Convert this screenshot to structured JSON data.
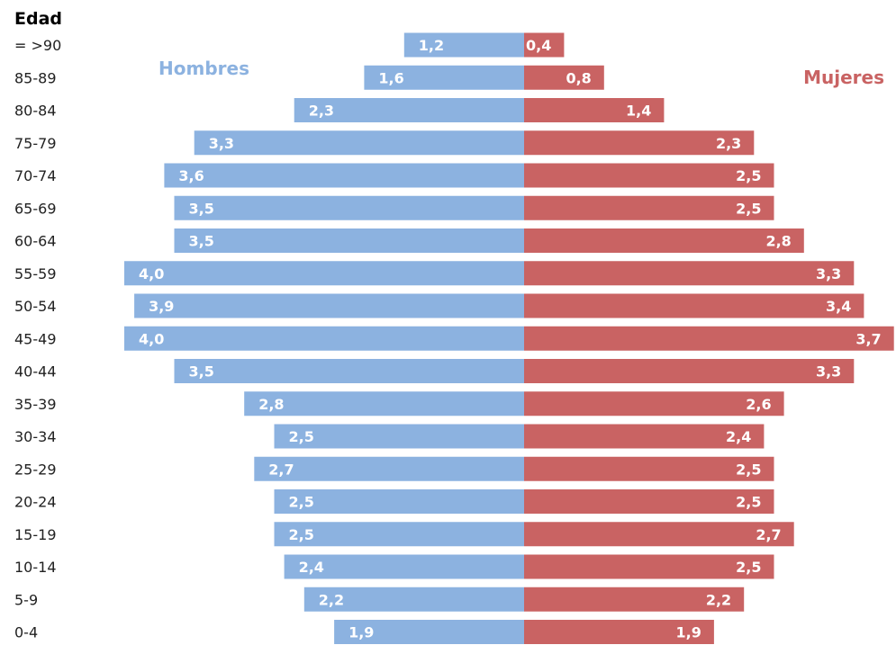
{
  "chart_data": {
    "type": "bar",
    "orientation": "horizontal-diverging",
    "ylabel": "Edad",
    "categories": [
      "= >90",
      "85-89",
      "80-84",
      "75-79",
      "70-74",
      "65-69",
      "60-64",
      "55-59",
      "50-54",
      "45-49",
      "40-44",
      "35-39",
      "30-34",
      "25-29",
      "20-24",
      "15-19",
      "10-14",
      "5-9",
      "0-4"
    ],
    "series": [
      {
        "name": "Hombres",
        "side": "left",
        "color": "#8cb2e0",
        "values": [
          1.2,
          1.6,
          2.3,
          3.3,
          3.6,
          3.5,
          3.5,
          4.0,
          3.9,
          4.0,
          3.5,
          2.8,
          2.5,
          2.7,
          2.5,
          2.5,
          2.4,
          2.2,
          1.9
        ],
        "labels": [
          "1,2",
          "1,6",
          "2,3",
          "3,3",
          "3,6",
          "3,5",
          "3,5",
          "4,0",
          "3,9",
          "4,0",
          "3,5",
          "2,8",
          "2,5",
          "2,7",
          "2,5",
          "2,5",
          "2,4",
          "2,2",
          "1,9"
        ]
      },
      {
        "name": "Mujeres",
        "side": "right",
        "color": "#c96363",
        "values": [
          0.4,
          0.8,
          1.4,
          2.3,
          2.5,
          2.5,
          2.8,
          3.3,
          3.4,
          3.7,
          3.3,
          2.6,
          2.4,
          2.5,
          2.5,
          2.7,
          2.5,
          2.2,
          1.9
        ],
        "labels": [
          "0,4",
          "0,8",
          "1,4",
          "2,3",
          "2,5",
          "2,5",
          "2,8",
          "3,3",
          "3,4",
          "3,7",
          "3,3",
          "2,6",
          "2,4",
          "2,5",
          "2,5",
          "2,7",
          "2,5",
          "2,2",
          "1,9"
        ]
      }
    ],
    "legend": "inside-top",
    "grid": false
  }
}
